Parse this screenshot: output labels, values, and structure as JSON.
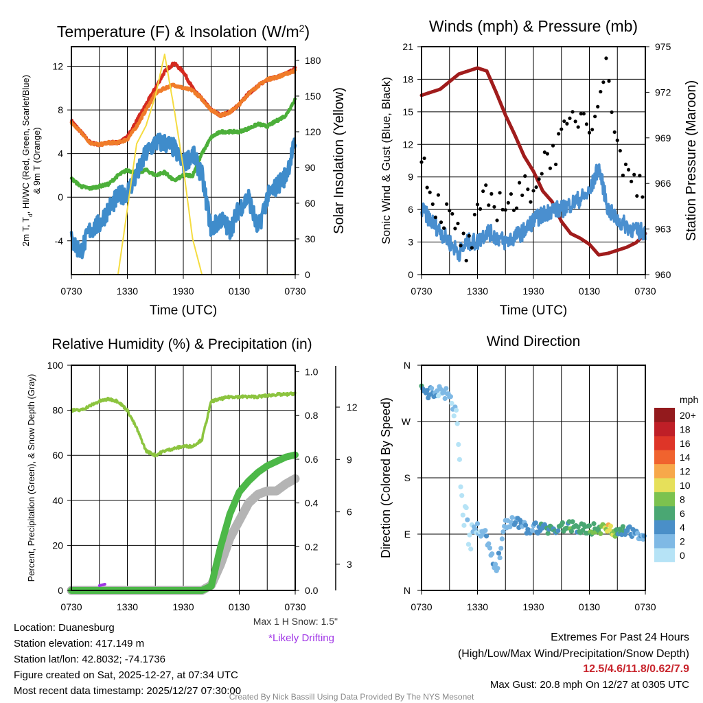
{
  "chart_data": [
    {
      "type": "line",
      "title": "Temperature (F) & Insolation (W/m",
      "title_sup": "2",
      "title_end": ")",
      "xlabel": "Time (UTC)",
      "ylabel_line1": "2m T, T",
      "ylabel_sub": "d",
      "ylabel_line1_end": ", HI/WC (Red, Green, Scarlet/Blue)",
      "ylabel_line2": "& 9m T (Orange)",
      "ylabel_right": "Solar Insolation (Yellow)",
      "x_hours": [
        0,
        1,
        2,
        3,
        4,
        5,
        6,
        7,
        8,
        9,
        10,
        11,
        12,
        13,
        14,
        15,
        16,
        17,
        18,
        19,
        20,
        21,
        22,
        23,
        24
      ],
      "xticks": [
        "0730",
        "1330",
        "1930",
        "0130",
        "0730"
      ],
      "ylim": [
        -7.1,
        13.8
      ],
      "yticks": [
        -4,
        0,
        4,
        8,
        12
      ],
      "ylim_right": [
        0,
        191.5
      ],
      "yticks_right": [
        0,
        30,
        60,
        90,
        120,
        150,
        180
      ],
      "series": [
        {
          "name": "2m T",
          "color": "#d42a20",
          "axis": "left",
          "values": [
            7,
            6,
            5,
            4.8,
            5,
            5,
            5.5,
            7,
            8.5,
            10,
            11.5,
            12.3,
            11.5,
            10,
            9,
            8,
            7.5,
            7.8,
            8.5,
            9.5,
            10.2,
            10.8,
            11,
            11.3,
            11.8
          ]
        },
        {
          "name": "9m T",
          "color": "#f07c2a",
          "axis": "left",
          "values": [
            6.8,
            6,
            5,
            4.8,
            5,
            5,
            5.3,
            6.5,
            8,
            9.5,
            10,
            10.3,
            10,
            9.8,
            9,
            8,
            7.5,
            7.8,
            8.5,
            9.5,
            10.2,
            10.8,
            11,
            11.3,
            11.6
          ]
        },
        {
          "name": "Td",
          "color": "#4caf3a",
          "axis": "left",
          "values": [
            1.7,
            1,
            0.8,
            1,
            1.2,
            2,
            2.5,
            2.2,
            2.5,
            2,
            2.3,
            1.5,
            2,
            2,
            4,
            5.5,
            6,
            6,
            6,
            6.3,
            6.7,
            6.5,
            7,
            7.5,
            9
          ]
        },
        {
          "name": "HI/WC",
          "color": "#3f8ccb",
          "axis": "left",
          "noisy": true,
          "values": [
            -4,
            -5,
            -3,
            -2.5,
            -1,
            0,
            0.5,
            2,
            4,
            5,
            5,
            4.5,
            3,
            4,
            2,
            -3,
            -2,
            -3,
            -1,
            0,
            -3,
            0,
            1,
            2,
            5
          ]
        },
        {
          "name": "Solar Insolation",
          "color": "#f5dc40",
          "axis": "right",
          "values": [
            0,
            0,
            0,
            0,
            0,
            0,
            55,
            110,
            125,
            150,
            185,
            140,
            90,
            30,
            0,
            0,
            0,
            0,
            0,
            0,
            0,
            0,
            0,
            0,
            0
          ]
        }
      ]
    },
    {
      "type": "line",
      "title": "Winds (mph) & Pressure (mb)",
      "xlabel": "Time (UTC)",
      "ylabel": "Sonic Wind & Gust (Blue, Black)",
      "ylabel_right": "Station Pressure (Maroon)",
      "x_hours": [
        0,
        1,
        2,
        3,
        4,
        5,
        6,
        7,
        8,
        9,
        10,
        11,
        12,
        13,
        14,
        15,
        16,
        17,
        18,
        19,
        20,
        21,
        22,
        23,
        24
      ],
      "xticks": [
        "0730",
        "1330",
        "1930",
        "0130",
        "0730"
      ],
      "ylim": [
        0,
        21
      ],
      "yticks": [
        0,
        3,
        6,
        9,
        12,
        15,
        18,
        21
      ],
      "ylim_right": [
        960,
        975
      ],
      "yticks_right": [
        960,
        963,
        966,
        969,
        972,
        975
      ],
      "series": [
        {
          "name": "Station Pressure",
          "color": "#a01c1c",
          "axis": "right",
          "values": [
            971.8,
            972,
            972.2,
            972.7,
            973.2,
            973.4,
            973.6,
            973.4,
            972,
            970.5,
            969.2,
            967.8,
            966.8,
            965.5,
            964.8,
            963.5,
            962.7,
            962.4,
            962,
            961.3,
            961.4,
            961.6,
            961.8,
            962.1,
            962.7
          ]
        },
        {
          "name": "Sonic Wind",
          "color": "#4a8fcf",
          "axis": "left",
          "noisy": true,
          "values": [
            6,
            5,
            4,
            3,
            2,
            3,
            3,
            4,
            3.5,
            3,
            3.5,
            4,
            5,
            5.5,
            6,
            6,
            6.5,
            7,
            7.5,
            10,
            6,
            5,
            4.5,
            4,
            4
          ]
        },
        {
          "name": "Gust",
          "color": "#000000",
          "axis": "left",
          "scatter": true,
          "values": [
            11.5,
            7.5,
            6,
            5,
            3.5,
            2,
            5,
            7,
            6.5,
            7,
            6.5,
            7.5,
            8.5,
            10,
            11.5,
            12,
            14,
            15,
            14,
            17,
            19,
            12,
            9,
            8.5,
            8.5
          ]
        }
      ]
    },
    {
      "type": "line",
      "title": "Relative Humidity (%) & Precipitation (in)",
      "ylabel": "Percent, Precipitation (Green), & Snow Depth (Gray)",
      "x_hours": [
        0,
        1,
        2,
        3,
        4,
        5,
        6,
        7,
        8,
        9,
        10,
        11,
        12,
        13,
        14,
        15,
        16,
        17,
        18,
        19,
        20,
        21,
        22,
        23,
        24
      ],
      "xticks": [
        "0730",
        "1330",
        "1930",
        "0130",
        "0730"
      ],
      "ylim": [
        0,
        100
      ],
      "yticks": [
        0,
        20,
        40,
        60,
        80,
        100
      ],
      "ylim_precip": [
        0,
        1.03
      ],
      "yticks_precip": [
        "0.0",
        "0.2",
        "0.4",
        "0.6",
        "0.8",
        "1.0"
      ],
      "ylim_snow": [
        1.5,
        14.4
      ],
      "yticks_snow": [
        3,
        6,
        9,
        12
      ],
      "series": [
        {
          "name": "Relative Humidity",
          "color": "#8cc43f",
          "axis": "left",
          "values": [
            80,
            80,
            82,
            84,
            85,
            84,
            80,
            72,
            62,
            60,
            62,
            63,
            64,
            64,
            67,
            84,
            85,
            86,
            86,
            86,
            86,
            86.5,
            87,
            87,
            87.5
          ]
        },
        {
          "name": "Snow Depth",
          "color": "#b4b4b4",
          "axis": "snow",
          "values": [
            1.5,
            1.5,
            1.5,
            1.5,
            1.5,
            1.5,
            1.5,
            1.5,
            1.5,
            1.5,
            1.5,
            1.5,
            1.5,
            1.5,
            1.5,
            1.8,
            3,
            4.5,
            5.5,
            6.5,
            7,
            7.2,
            7.2,
            7.6,
            7.9
          ]
        },
        {
          "name": "Precipitation",
          "color": "#4cb848",
          "axis": "precip",
          "values": [
            0,
            0,
            0,
            0,
            0,
            0,
            0,
            0,
            0,
            0,
            0,
            0,
            0,
            0,
            0,
            0.02,
            0.2,
            0.35,
            0.45,
            0.5,
            0.54,
            0.57,
            0.59,
            0.61,
            0.62
          ]
        }
      ],
      "drifting_hour": 3.3,
      "drifting_color": "#a035e6"
    },
    {
      "type": "scatter",
      "title": "Wind Direction",
      "ylabel": "Direction (Colored By Speed)",
      "x_hours": [
        0,
        1,
        2,
        3,
        4,
        5,
        6,
        7,
        8,
        9,
        10,
        11,
        12,
        13,
        14,
        15,
        16,
        17,
        18,
        19,
        20,
        21,
        22,
        23,
        24
      ],
      "xticks": [
        "0730",
        "1330",
        "1930",
        "0130",
        "0730"
      ],
      "ylim": [
        0,
        360
      ],
      "yticks": [
        "N",
        "E",
        "S",
        "W",
        "N"
      ],
      "direction_deg": [
        320,
        315,
        318,
        312,
        240,
        95,
        100,
        85,
        30,
        105,
        110,
        100,
        100,
        100,
        98,
        100,
        102,
        100,
        98,
        100,
        97,
        95,
        93,
        92,
        90
      ],
      "speed_mph": [
        6,
        4,
        3,
        3,
        1,
        1,
        2,
        3,
        4,
        3,
        4,
        4,
        5,
        6,
        6,
        7,
        7,
        6,
        7,
        8,
        12,
        7,
        5,
        4,
        4
      ],
      "colorbar": {
        "title": "mph",
        "labels": [
          "0",
          "2",
          "4",
          "6",
          "8",
          "10",
          "12",
          "14",
          "16",
          "18",
          "20+"
        ],
        "colors": [
          "#b6e3f6",
          "#7fb9e5",
          "#4a8fc8",
          "#4aa773",
          "#7cc24f",
          "#e6e05a",
          "#f7a84a",
          "#f0632e",
          "#de3528",
          "#bf1f27",
          "#931a1d"
        ]
      }
    }
  ],
  "station_info": {
    "location": "Location: Duanesburg",
    "elevation": "Station elevation: 417.149 m",
    "latlon": "Station lat/lon: 42.8032; -74.1736",
    "created": "Figure created on Sat, 2025-12-27, at 07:34 UTC",
    "recent": "Most recent data timestamp: 2025/12/27 07:30:00"
  },
  "snow_note": {
    "max_snow": "Max 1 H Snow: 1.5\"",
    "drifting": "*Likely Drifting"
  },
  "extremes": {
    "title": "Extremes For Past 24 Hours",
    "subtitle": "(High/Low/Max Wind/Precipitation/Snow Depth)",
    "values": "12.5/4.6/11.8/0.62/7.9",
    "max_gust": "Max Gust: 20.8 mph On 12/27 at 0305 UTC"
  },
  "credit": "Created By Nick Bassill Using Data Provided By The NYS Mesonet"
}
